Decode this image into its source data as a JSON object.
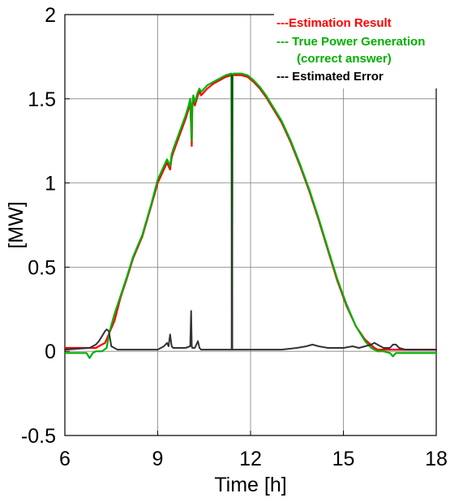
{
  "chart_data": {
    "type": "line",
    "title": "",
    "xlabel": "Time [h]",
    "ylabel": "[MW]",
    "xlim": [
      6,
      18
    ],
    "ylim": [
      -0.5,
      2
    ],
    "xticks": [
      6,
      9,
      12,
      15,
      18
    ],
    "yticks": [
      -0.5,
      0,
      0.5,
      1,
      1.5,
      2
    ],
    "ytick_labels": [
      "-0.5",
      "0",
      "0.5",
      "1",
      "1.5",
      "2"
    ],
    "grid": true,
    "legend_position": "top-right",
    "legend": [
      {
        "text": "---Estimation Result",
        "color": "#ff0000"
      },
      {
        "text": "--- True Power Generation",
        "color": "#00b000"
      },
      {
        "text": "(correct answer)",
        "color": "#00b000"
      },
      {
        "text": "--- Estimated Error",
        "color": "#000000"
      }
    ],
    "series": [
      {
        "name": "Estimation Result",
        "color": "#ff0000",
        "x": [
          6.0,
          7.0,
          7.3,
          7.6,
          7.8,
          8.0,
          8.2,
          8.5,
          8.8,
          9.0,
          9.2,
          9.3,
          9.4,
          9.45,
          9.5,
          9.7,
          9.9,
          10.0,
          10.05,
          10.1,
          10.12,
          10.15,
          10.2,
          10.3,
          10.35,
          10.4,
          10.6,
          10.8,
          11.0,
          11.2,
          11.4,
          11.5,
          11.7,
          11.9,
          12.1,
          12.3,
          12.5,
          12.7,
          13.0,
          13.3,
          13.6,
          13.9,
          14.2,
          14.5,
          14.8,
          15.1,
          15.4,
          15.7,
          16.0,
          16.1,
          16.2,
          16.4,
          16.6,
          16.7,
          17.0,
          18.0
        ],
        "y": [
          0.02,
          0.02,
          0.05,
          0.18,
          0.32,
          0.43,
          0.55,
          0.68,
          0.87,
          1.0,
          1.08,
          1.12,
          1.08,
          1.15,
          1.18,
          1.28,
          1.38,
          1.44,
          1.48,
          1.22,
          1.45,
          1.5,
          1.46,
          1.52,
          1.55,
          1.52,
          1.56,
          1.59,
          1.61,
          1.63,
          1.64,
          1.64,
          1.64,
          1.63,
          1.6,
          1.56,
          1.51,
          1.45,
          1.36,
          1.24,
          1.1,
          0.95,
          0.78,
          0.6,
          0.42,
          0.27,
          0.15,
          0.07,
          0.02,
          0.01,
          0.01,
          0.01,
          0.01,
          0.01,
          0.01,
          0.01
        ]
      },
      {
        "name": "True Power Generation (correct answer)",
        "color": "#00b000",
        "x": [
          6.0,
          6.7,
          6.8,
          6.9,
          7.0,
          7.2,
          7.35,
          7.45,
          7.6,
          7.8,
          8.0,
          8.2,
          8.5,
          8.8,
          9.0,
          9.2,
          9.3,
          9.4,
          9.45,
          9.5,
          9.7,
          9.9,
          10.0,
          10.05,
          10.1,
          10.12,
          10.15,
          10.2,
          10.3,
          10.35,
          10.4,
          10.6,
          10.8,
          11.0,
          11.2,
          11.38,
          11.4,
          11.42,
          11.45,
          11.5,
          11.7,
          11.9,
          12.1,
          12.3,
          12.5,
          12.7,
          13.0,
          13.3,
          13.6,
          13.9,
          14.2,
          14.5,
          14.8,
          15.1,
          15.4,
          15.7,
          15.9,
          16.1,
          16.3,
          16.5,
          16.6,
          16.7,
          16.9,
          17.0,
          18.0
        ],
        "y": [
          -0.01,
          -0.01,
          -0.04,
          -0.01,
          0.0,
          0.0,
          0.02,
          0.12,
          0.22,
          0.33,
          0.44,
          0.56,
          0.69,
          0.88,
          1.02,
          1.1,
          1.14,
          1.1,
          1.17,
          1.2,
          1.3,
          1.4,
          1.46,
          1.5,
          1.25,
          1.47,
          1.52,
          1.48,
          1.54,
          1.56,
          1.54,
          1.58,
          1.6,
          1.62,
          1.64,
          1.65,
          0.01,
          1.64,
          1.65,
          1.65,
          1.65,
          1.64,
          1.61,
          1.57,
          1.52,
          1.46,
          1.37,
          1.25,
          1.11,
          0.96,
          0.79,
          0.61,
          0.43,
          0.28,
          0.15,
          0.06,
          0.02,
          0.0,
          0.0,
          -0.01,
          -0.03,
          -0.01,
          -0.01,
          -0.01,
          -0.01
        ]
      },
      {
        "name": "Estimated Error",
        "color": "#333333",
        "x": [
          6.0,
          6.8,
          7.0,
          7.1,
          7.2,
          7.3,
          7.35,
          7.42,
          7.5,
          7.7,
          8.0,
          8.5,
          9.0,
          9.2,
          9.3,
          9.35,
          9.4,
          9.45,
          9.5,
          9.7,
          9.9,
          10.05,
          10.08,
          10.1,
          10.12,
          10.2,
          10.3,
          10.35,
          10.4,
          10.6,
          11.0,
          11.3,
          11.39,
          11.4,
          11.41,
          11.5,
          12.0,
          12.5,
          13.0,
          13.5,
          13.8,
          14.0,
          14.2,
          14.5,
          15.0,
          15.3,
          15.5,
          15.7,
          15.9,
          16.0,
          16.1,
          16.2,
          16.3,
          16.5,
          16.6,
          16.7,
          16.75,
          16.8,
          17.0,
          18.0
        ],
        "y": [
          0.01,
          0.02,
          0.04,
          0.06,
          0.09,
          0.12,
          0.13,
          0.12,
          0.03,
          0.01,
          0.01,
          0.01,
          0.01,
          0.03,
          0.05,
          0.03,
          0.1,
          0.03,
          0.02,
          0.02,
          0.02,
          0.03,
          0.24,
          0.03,
          0.02,
          0.02,
          0.06,
          0.02,
          0.01,
          0.01,
          0.01,
          0.01,
          0.01,
          1.64,
          0.01,
          0.01,
          0.01,
          0.01,
          0.01,
          0.02,
          0.03,
          0.04,
          0.03,
          0.02,
          0.02,
          0.03,
          0.02,
          0.03,
          0.04,
          0.05,
          0.04,
          0.03,
          0.02,
          0.02,
          0.04,
          0.04,
          0.03,
          0.02,
          0.01,
          0.01
        ]
      }
    ]
  }
}
